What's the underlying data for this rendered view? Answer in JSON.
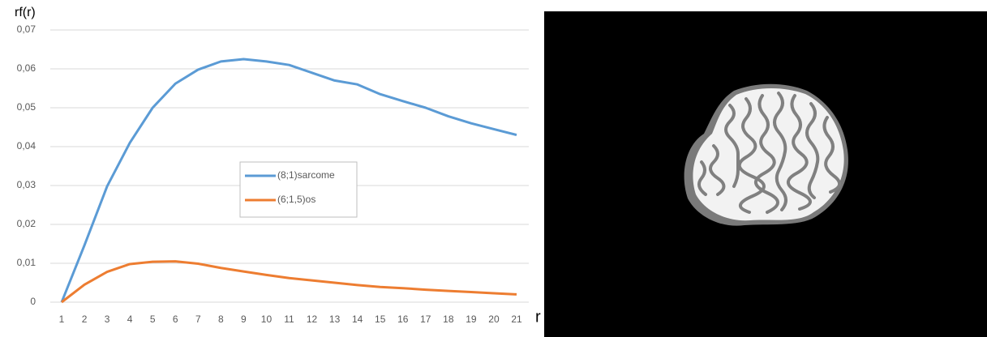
{
  "chart_data": {
    "type": "line",
    "x_label": "r",
    "y_label": "rf(r)",
    "categories": [
      "1",
      "2",
      "3",
      "4",
      "5",
      "6",
      "7",
      "8",
      "9",
      "10",
      "11",
      "12",
      "13",
      "14",
      "15",
      "16",
      "17",
      "18",
      "19",
      "20",
      "21"
    ],
    "series": [
      {
        "name": "(8;1)sarcome",
        "color": "#5b9bd5",
        "values": [
          0,
          0.0146,
          0.0298,
          0.041,
          0.05,
          0.0562,
          0.0598,
          0.0619,
          0.0625,
          0.0619,
          0.061,
          0.059,
          0.057,
          0.056,
          0.0535,
          0.0517,
          0.05,
          0.0478,
          0.046,
          0.0445,
          0.043
        ]
      },
      {
        "name": "(6;1,5)os",
        "color": "#ed7d31",
        "values": [
          0,
          0.0045,
          0.0078,
          0.0098,
          0.0104,
          0.0105,
          0.0099,
          0.0088,
          0.0079,
          0.007,
          0.0062,
          0.0056,
          0.005,
          0.0044,
          0.0039,
          0.0036,
          0.0032,
          0.0029,
          0.0026,
          0.0023,
          0.002
        ]
      }
    ],
    "ylim": [
      0,
      0.07
    ],
    "yticks": [
      0,
      {
        "value": 0.01,
        "label": "0,01"
      },
      {
        "value": 0.02,
        "label": "0,02"
      },
      {
        "value": 0.03,
        "label": "0,03"
      },
      {
        "value": 0.04,
        "label": "0,04"
      },
      {
        "value": 0.05,
        "label": "0,05"
      },
      {
        "value": 0.06,
        "label": "0,06"
      },
      {
        "value": 0.07,
        "label": "0,07"
      }
    ],
    "grid": true
  }
}
